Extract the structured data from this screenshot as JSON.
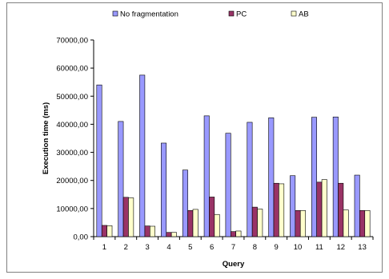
{
  "chart_data": {
    "type": "bar",
    "title": "",
    "xlabel": "Query",
    "ylabel": "Execution time (ms)",
    "ylim": [
      0,
      70000
    ],
    "yticks": [
      "0,00",
      "10000,00",
      "20000,00",
      "30000,00",
      "40000,00",
      "50000,00",
      "60000,00",
      "70000,00"
    ],
    "categories": [
      "1",
      "2",
      "3",
      "4",
      "5",
      "6",
      "7",
      "8",
      "9",
      "10",
      "11",
      "12",
      "13"
    ],
    "series": [
      {
        "name": "No fragmentation",
        "color": "#9999ff",
        "values": [
          54000,
          41000,
          57500,
          33300,
          23700,
          43000,
          36800,
          40700,
          42300,
          21700,
          42500,
          42600,
          21900
        ]
      },
      {
        "name": "PC",
        "color": "#993366",
        "values": [
          4000,
          14000,
          3800,
          1500,
          9300,
          14100,
          1800,
          10500,
          19000,
          9300,
          19400,
          19000,
          9300
        ]
      },
      {
        "name": "AB",
        "color": "#ffffcc",
        "values": [
          3900,
          13800,
          3700,
          1500,
          9700,
          7900,
          2000,
          9800,
          18800,
          9300,
          20300,
          9500,
          9300
        ]
      }
    ],
    "grid": false,
    "legend_position": "top",
    "background": "#ffffff",
    "plot_background": "#ffffff"
  }
}
